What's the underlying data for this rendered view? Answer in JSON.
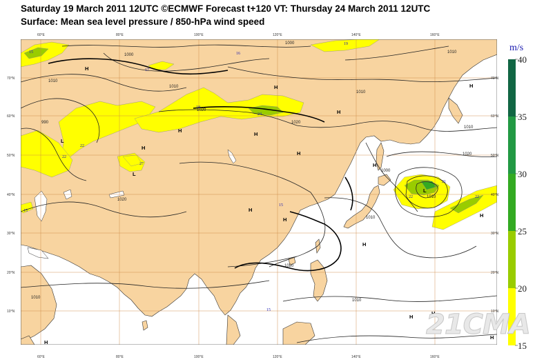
{
  "header": {
    "line1": "Saturday 19 March 2011 12UTC ©ECMWF Forecast t+120 VT: Thursday 24 March 2011 12UTC",
    "line2": "Surface: Mean sea level pressure / 850-hPa wind speed"
  },
  "legend": {
    "unit": "m/s",
    "ticks": [
      "40",
      "35",
      "30",
      "25",
      "20",
      "15"
    ],
    "colors": {
      "15-20": "#ffff00",
      "20-25": "#99cc00",
      "25-30": "#33aa22",
      "30-35": "#229944",
      "35-40": "#116644"
    }
  },
  "map": {
    "land_color": "#f8d4a0",
    "sea_color": "#ffffff",
    "lon_labels_top": [
      "60°E",
      "80°E",
      "100°E",
      "120°E",
      "140°E",
      "160°E"
    ],
    "lon_labels_bottom": [
      "60°E",
      "80°E",
      "100°E",
      "120°E",
      "140°E",
      "160°E"
    ],
    "lat_labels_left": [
      "70°N",
      "60°N",
      "50°N",
      "40°N",
      "30°N",
      "20°N",
      "10°N"
    ],
    "lat_labels_right": [
      "70°N",
      "60°N",
      "50°N",
      "40°N",
      "30°N",
      "20°N",
      "10°N"
    ],
    "isobar_labels": [
      "1000",
      "1010",
      "1010",
      "1000",
      "1010",
      "1020",
      "1020",
      "1010",
      "1020",
      "1010",
      "1010",
      "1010",
      "1020",
      "1000",
      "990",
      "1010",
      "1020",
      "1010"
    ],
    "pressure_centers": [
      "H",
      "H",
      "H",
      "H",
      "H",
      "H",
      "H",
      "H",
      "H",
      "H",
      "H",
      "H",
      "H",
      "H",
      "H",
      "H",
      "L",
      "L",
      "L",
      "H",
      "H"
    ],
    "wind_labels": [
      "15",
      "17",
      "18",
      "19",
      "24",
      "22",
      "27",
      "15",
      "15",
      "22",
      "22",
      "16",
      "15",
      "21",
      "22"
    ]
  },
  "watermark": "21CMA"
}
